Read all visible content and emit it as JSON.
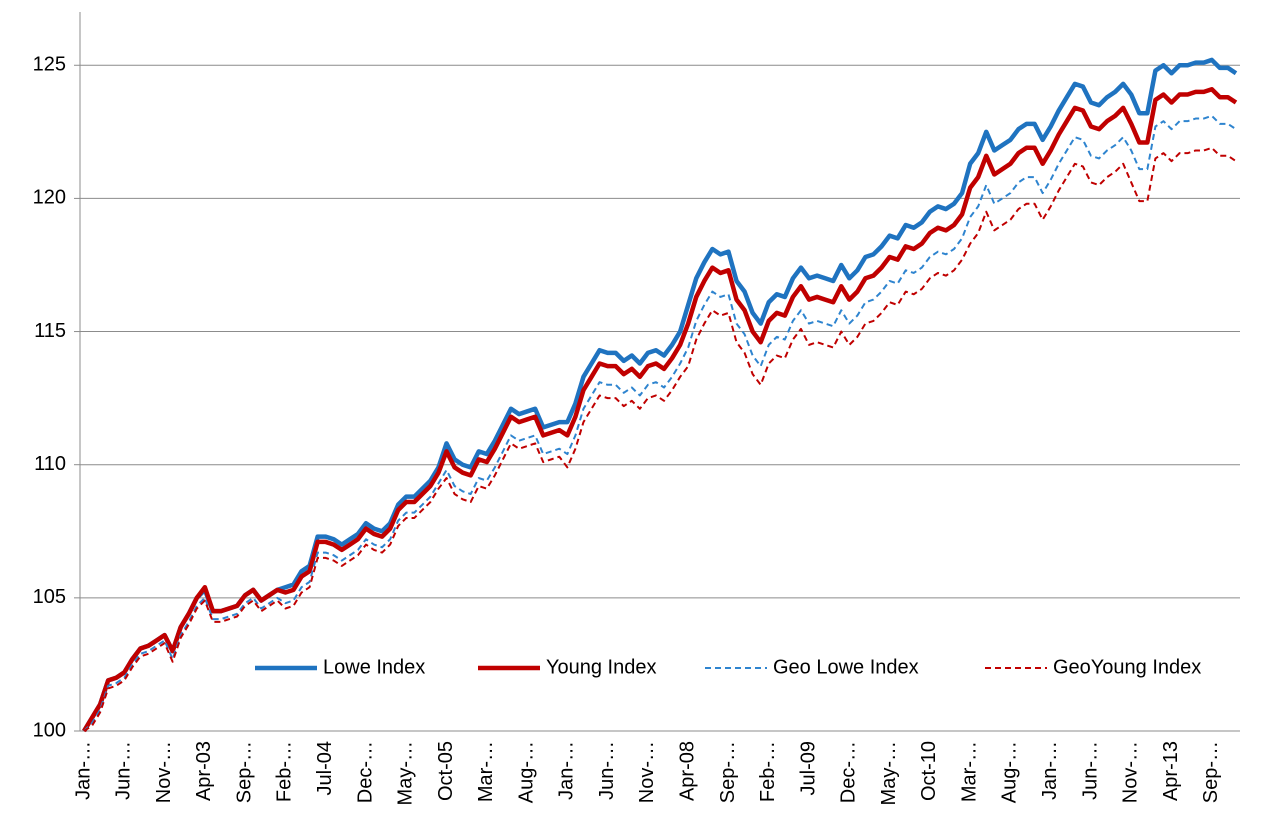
{
  "chart_data": {
    "type": "line",
    "categories": [
      "Jan-…",
      null,
      null,
      null,
      null,
      "Jun-…",
      null,
      null,
      null,
      null,
      "Nov-…",
      null,
      null,
      null,
      null,
      "Apr-03",
      null,
      null,
      null,
      null,
      "Sep-…",
      null,
      null,
      null,
      null,
      "Feb-…",
      null,
      null,
      null,
      null,
      "Jul-04",
      null,
      null,
      null,
      null,
      "Dec-…",
      null,
      null,
      null,
      null,
      "May-…",
      null,
      null,
      null,
      null,
      "Oct-05",
      null,
      null,
      null,
      null,
      "Mar-…",
      null,
      null,
      null,
      null,
      "Aug-…",
      null,
      null,
      null,
      null,
      "Jan-…",
      null,
      null,
      null,
      null,
      "Jun-…",
      null,
      null,
      null,
      null,
      "Nov-…",
      null,
      null,
      null,
      null,
      "Apr-08",
      null,
      null,
      null,
      null,
      "Sep-…",
      null,
      null,
      null,
      null,
      "Feb-…",
      null,
      null,
      null,
      null,
      "Jul-09",
      null,
      null,
      null,
      null,
      "Dec-…",
      null,
      null,
      null,
      null,
      "May-…",
      null,
      null,
      null,
      null,
      "Oct-10",
      null,
      null,
      null,
      null,
      "Mar-…",
      null,
      null,
      null,
      null,
      "Aug-…",
      null,
      null,
      null,
      null,
      "Jan-…",
      null,
      null,
      null,
      null,
      "Jun-…",
      null,
      null,
      null,
      null,
      "Nov-…",
      null,
      null,
      null,
      null,
      "Apr-13",
      null,
      null,
      null,
      null,
      "Sep-…",
      null,
      null,
      null
    ],
    "series": [
      {
        "name": "Lowe Index",
        "color": "#1f73c0",
        "style": "solid",
        "values": [
          100.0,
          100.5,
          101.0,
          101.9,
          102.0,
          102.2,
          102.7,
          103.1,
          103.2,
          103.4,
          103.6,
          103.0,
          103.9,
          104.4,
          105.0,
          105.3,
          104.5,
          104.5,
          104.6,
          104.7,
          105.1,
          105.3,
          104.9,
          105.1,
          105.3,
          105.4,
          105.5,
          106.0,
          106.2,
          107.3,
          107.3,
          107.2,
          107.0,
          107.2,
          107.4,
          107.8,
          107.6,
          107.5,
          107.8,
          108.5,
          108.8,
          108.8,
          109.1,
          109.4,
          109.9,
          110.8,
          110.2,
          110.0,
          109.9,
          110.5,
          110.4,
          110.9,
          111.5,
          112.1,
          111.9,
          112.0,
          112.1,
          111.4,
          111.5,
          111.6,
          111.6,
          112.3,
          113.3,
          113.8,
          114.3,
          114.2,
          114.2,
          113.9,
          114.1,
          113.8,
          114.2,
          114.3,
          114.1,
          114.5,
          115.0,
          116.0,
          117.0,
          117.6,
          118.1,
          117.9,
          118.0,
          116.9,
          116.5,
          115.7,
          115.3,
          116.1,
          116.4,
          116.3,
          117.0,
          117.4,
          117.0,
          117.1,
          117.0,
          116.9,
          117.5,
          117.0,
          117.3,
          117.8,
          117.9,
          118.2,
          118.6,
          118.5,
          119.0,
          118.9,
          119.1,
          119.5,
          119.7,
          119.6,
          119.8,
          120.2,
          121.3,
          121.7,
          122.5,
          121.8,
          122.0,
          122.2,
          122.6,
          122.8,
          122.8,
          122.2,
          122.7,
          123.3,
          123.8,
          124.3,
          124.2,
          123.6,
          123.5,
          123.8,
          124.0,
          124.3,
          123.9,
          123.2,
          123.2,
          124.8,
          125.0,
          124.7,
          125.0,
          125.0,
          125.1,
          125.1,
          125.2,
          124.9,
          124.9,
          124.7
        ]
      },
      {
        "name": "Young Index",
        "color": "#c00000",
        "style": "solid",
        "values": [
          100.0,
          100.5,
          101.0,
          101.9,
          102.0,
          102.2,
          102.7,
          103.1,
          103.2,
          103.4,
          103.6,
          103.0,
          103.9,
          104.4,
          105.0,
          105.4,
          104.5,
          104.5,
          104.6,
          104.7,
          105.1,
          105.3,
          104.9,
          105.1,
          105.3,
          105.2,
          105.3,
          105.8,
          106.0,
          107.1,
          107.1,
          107.0,
          106.8,
          107.0,
          107.2,
          107.6,
          107.4,
          107.3,
          107.6,
          108.3,
          108.6,
          108.6,
          108.9,
          109.2,
          109.7,
          110.5,
          109.9,
          109.7,
          109.6,
          110.2,
          110.1,
          110.6,
          111.2,
          111.8,
          111.6,
          111.7,
          111.8,
          111.1,
          111.2,
          111.3,
          111.1,
          111.8,
          112.8,
          113.3,
          113.8,
          113.7,
          113.7,
          113.4,
          113.6,
          113.3,
          113.7,
          113.8,
          113.6,
          114.0,
          114.5,
          115.3,
          116.3,
          116.9,
          117.4,
          117.2,
          117.3,
          116.2,
          115.8,
          115.0,
          114.6,
          115.4,
          115.7,
          115.6,
          116.3,
          116.7,
          116.2,
          116.3,
          116.2,
          116.1,
          116.7,
          116.2,
          116.5,
          117.0,
          117.1,
          117.4,
          117.8,
          117.7,
          118.2,
          118.1,
          118.3,
          118.7,
          118.9,
          118.8,
          119.0,
          119.4,
          120.4,
          120.8,
          121.6,
          120.9,
          121.1,
          121.3,
          121.7,
          121.9,
          121.9,
          121.3,
          121.8,
          122.4,
          122.9,
          123.4,
          123.3,
          122.7,
          122.6,
          122.9,
          123.1,
          123.4,
          122.8,
          122.1,
          122.1,
          123.7,
          123.9,
          123.6,
          123.9,
          123.9,
          124.0,
          124.0,
          124.1,
          123.8,
          123.8,
          123.6
        ]
      },
      {
        "name": "Geo Lowe Index",
        "color": "#2e84cf",
        "style": "dashed",
        "values": [
          100.0,
          100.3,
          100.8,
          101.7,
          101.8,
          102.0,
          102.5,
          102.9,
          103.0,
          103.2,
          103.4,
          102.7,
          103.6,
          104.1,
          104.7,
          105.0,
          104.2,
          104.2,
          104.3,
          104.4,
          104.8,
          105.0,
          104.6,
          104.8,
          105.0,
          104.8,
          104.9,
          105.4,
          105.6,
          106.7,
          106.7,
          106.6,
          106.4,
          106.6,
          106.8,
          107.2,
          107.0,
          106.9,
          107.2,
          107.9,
          108.2,
          108.2,
          108.5,
          108.8,
          109.3,
          109.8,
          109.2,
          109.0,
          108.9,
          109.5,
          109.4,
          109.9,
          110.5,
          111.1,
          110.9,
          111.0,
          111.1,
          110.4,
          110.5,
          110.6,
          110.4,
          111.1,
          112.1,
          112.6,
          113.1,
          113.0,
          113.0,
          112.7,
          112.9,
          112.6,
          113.0,
          113.1,
          112.9,
          113.3,
          113.8,
          114.4,
          115.4,
          116.0,
          116.5,
          116.3,
          116.4,
          115.3,
          114.9,
          114.1,
          113.7,
          114.5,
          114.8,
          114.7,
          115.4,
          115.8,
          115.3,
          115.4,
          115.3,
          115.2,
          115.8,
          115.3,
          115.6,
          116.1,
          116.2,
          116.5,
          116.9,
          116.8,
          117.3,
          117.2,
          117.4,
          117.8,
          118.0,
          117.9,
          118.1,
          118.5,
          119.3,
          119.7,
          120.5,
          119.8,
          120.0,
          120.2,
          120.6,
          120.8,
          120.8,
          120.2,
          120.7,
          121.3,
          121.8,
          122.3,
          122.2,
          121.6,
          121.5,
          121.8,
          122.0,
          122.3,
          121.8,
          121.1,
          121.1,
          122.7,
          122.9,
          122.6,
          122.9,
          122.9,
          123.0,
          123.0,
          123.1,
          122.8,
          122.8,
          122.6
        ]
      },
      {
        "name": "GeoYoung Index",
        "color": "#c00000",
        "style": "dashed",
        "values": [
          100.0,
          100.2,
          100.7,
          101.6,
          101.7,
          101.9,
          102.4,
          102.8,
          102.9,
          103.1,
          103.3,
          102.6,
          103.5,
          104.0,
          104.6,
          104.9,
          104.1,
          104.1,
          104.2,
          104.3,
          104.7,
          104.9,
          104.5,
          104.7,
          104.9,
          104.6,
          104.7,
          105.2,
          105.4,
          106.5,
          106.5,
          106.4,
          106.2,
          106.4,
          106.6,
          107.0,
          106.8,
          106.7,
          107.0,
          107.7,
          108.0,
          108.0,
          108.3,
          108.6,
          109.1,
          109.5,
          108.9,
          108.7,
          108.6,
          109.2,
          109.1,
          109.6,
          110.2,
          110.8,
          110.6,
          110.7,
          110.8,
          110.1,
          110.2,
          110.3,
          109.9,
          110.6,
          111.6,
          112.1,
          112.6,
          112.5,
          112.5,
          112.2,
          112.4,
          112.1,
          112.5,
          112.6,
          112.4,
          112.8,
          113.3,
          113.7,
          114.7,
          115.3,
          115.8,
          115.6,
          115.7,
          114.6,
          114.2,
          113.4,
          113.0,
          113.8,
          114.1,
          114.0,
          114.7,
          115.1,
          114.5,
          114.6,
          114.5,
          114.4,
          115.0,
          114.5,
          114.8,
          115.3,
          115.4,
          115.7,
          116.1,
          116.0,
          116.5,
          116.4,
          116.6,
          117.0,
          117.2,
          117.1,
          117.3,
          117.7,
          118.3,
          118.7,
          119.5,
          118.8,
          119.0,
          119.2,
          119.6,
          119.8,
          119.8,
          119.2,
          119.7,
          120.3,
          120.8,
          121.3,
          121.2,
          120.6,
          120.5,
          120.8,
          121.0,
          121.3,
          120.6,
          119.9,
          119.9,
          121.5,
          121.7,
          121.4,
          121.7,
          121.7,
          121.8,
          121.8,
          121.9,
          121.6,
          121.6,
          121.4
        ]
      }
    ],
    "ylim": [
      100,
      127
    ],
    "yticks": [
      100,
      105,
      110,
      115,
      120,
      125
    ],
    "grid": true,
    "legend": "bottom-right"
  }
}
